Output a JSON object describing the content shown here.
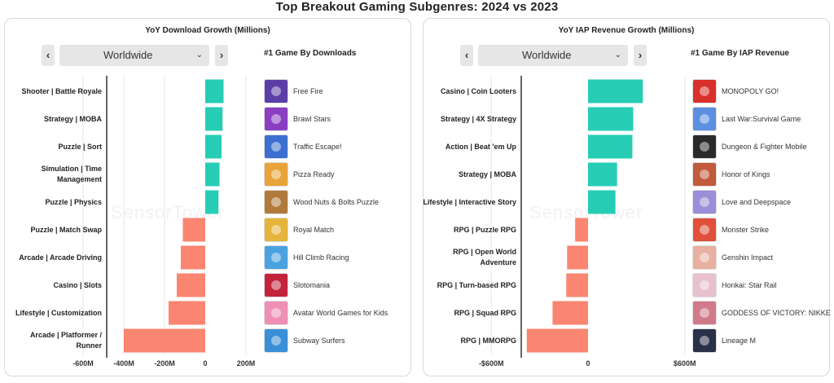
{
  "main_title": "Top Breakout Gaming Subgenres: 2024 vs 2023",
  "colors": {
    "positive": "#26cdb4",
    "negative": "#fa8571",
    "axis": "#333333",
    "grid": "#e6e6e6"
  },
  "watermark": "SensorTower",
  "panels": [
    {
      "title": "YoY Download Growth (Millions)",
      "region": "Worldwide",
      "nav_prev": "‹",
      "nav_next": "›",
      "dropdown_icon": "⌄",
      "top_header": "#1  Game By Downloads",
      "chart_data": {
        "type": "bar",
        "orientation": "horizontal",
        "title": "YoY Download Growth (Millions)",
        "categories": [
          "Shooter | Battle Royale",
          "Strategy | MOBA",
          "Puzzle | Sort",
          "Simulation | Time Management",
          "Puzzle | Physics",
          "Puzzle | Match Swap",
          "Arcade | Arcade Driving",
          "Casino | Slots",
          "Lifestyle | Customization",
          "Arcade | Platformer / Runner"
        ],
        "values": [
          90,
          85,
          80,
          70,
          65,
          -110,
          -120,
          -140,
          -180,
          -400
        ],
        "xlim": [
          -410,
          250
        ],
        "ticks": [
          -600,
          -400,
          -200,
          0,
          200
        ],
        "tick_labels": [
          "-600M",
          "-400M",
          "-200M",
          "0",
          "200M"
        ]
      },
      "games": [
        {
          "name": "Free Fire",
          "color": "#5b3fa6"
        },
        {
          "name": "Brawl Stars",
          "color": "#8a3fc2"
        },
        {
          "name": "Traffic Escape!",
          "color": "#3c6fd0"
        },
        {
          "name": "Pizza Ready",
          "color": "#e8a43a"
        },
        {
          "name": "Wood Nuts & Bolts Puzzle",
          "color": "#b07a3c"
        },
        {
          "name": "Royal Match",
          "color": "#e4b53a"
        },
        {
          "name": "Hill Climb Racing",
          "color": "#4aa3e0"
        },
        {
          "name": "Slotomania",
          "color": "#c2243c"
        },
        {
          "name": "Avatar World Games for Kids",
          "color": "#f08fb4"
        },
        {
          "name": "Subway Surfers",
          "color": "#3a8fd6"
        }
      ]
    },
    {
      "title": "YoY IAP Revenue Growth (Millions)",
      "region": "Worldwide",
      "nav_prev": "‹",
      "nav_next": "›",
      "dropdown_icon": "⌄",
      "top_header": "#1  Game By IAP Revenue",
      "chart_data": {
        "type": "bar",
        "orientation": "horizontal",
        "title": "YoY IAP Revenue Growth (Millions)",
        "categories": [
          "Casino | Coin Looters",
          "Strategy | 4X Strategy",
          "Action | Beat 'em Up",
          "Strategy | MOBA",
          "Lifestyle | Interactive Story",
          "RPG | Puzzle RPG",
          "RPG | Open World Adventure",
          "RPG | Turn-based RPG",
          "RPG | Squad RPG",
          "RPG | MMORPG"
        ],
        "values": [
          340,
          280,
          275,
          180,
          170,
          -80,
          -130,
          -135,
          -220,
          -380
        ],
        "xlim": [
          -380,
          380
        ],
        "ticks": [
          -600,
          0,
          600
        ],
        "tick_labels": [
          "-$600M",
          "0",
          "$600M"
        ]
      },
      "games": [
        {
          "name": "MONOPOLY GO!",
          "color": "#d9302a"
        },
        {
          "name": "Last War:Survival Game",
          "color": "#5b8fe0"
        },
        {
          "name": "Dungeon & Fighter Mobile",
          "color": "#2a2a2a"
        },
        {
          "name": "Honor of Kings",
          "color": "#c25a3c"
        },
        {
          "name": "Love and Deepspace",
          "color": "#9a8fd8"
        },
        {
          "name": "Monster Strike",
          "color": "#e0503a"
        },
        {
          "name": "Genshin Impact",
          "color": "#e8b0a0"
        },
        {
          "name": "Honkai: Star Rail",
          "color": "#e8c0d0"
        },
        {
          "name": "GODDESS OF VICTORY: NIKKE",
          "color": "#d07a8a"
        },
        {
          "name": "Lineage M",
          "color": "#2a2f4a"
        }
      ]
    }
  ]
}
